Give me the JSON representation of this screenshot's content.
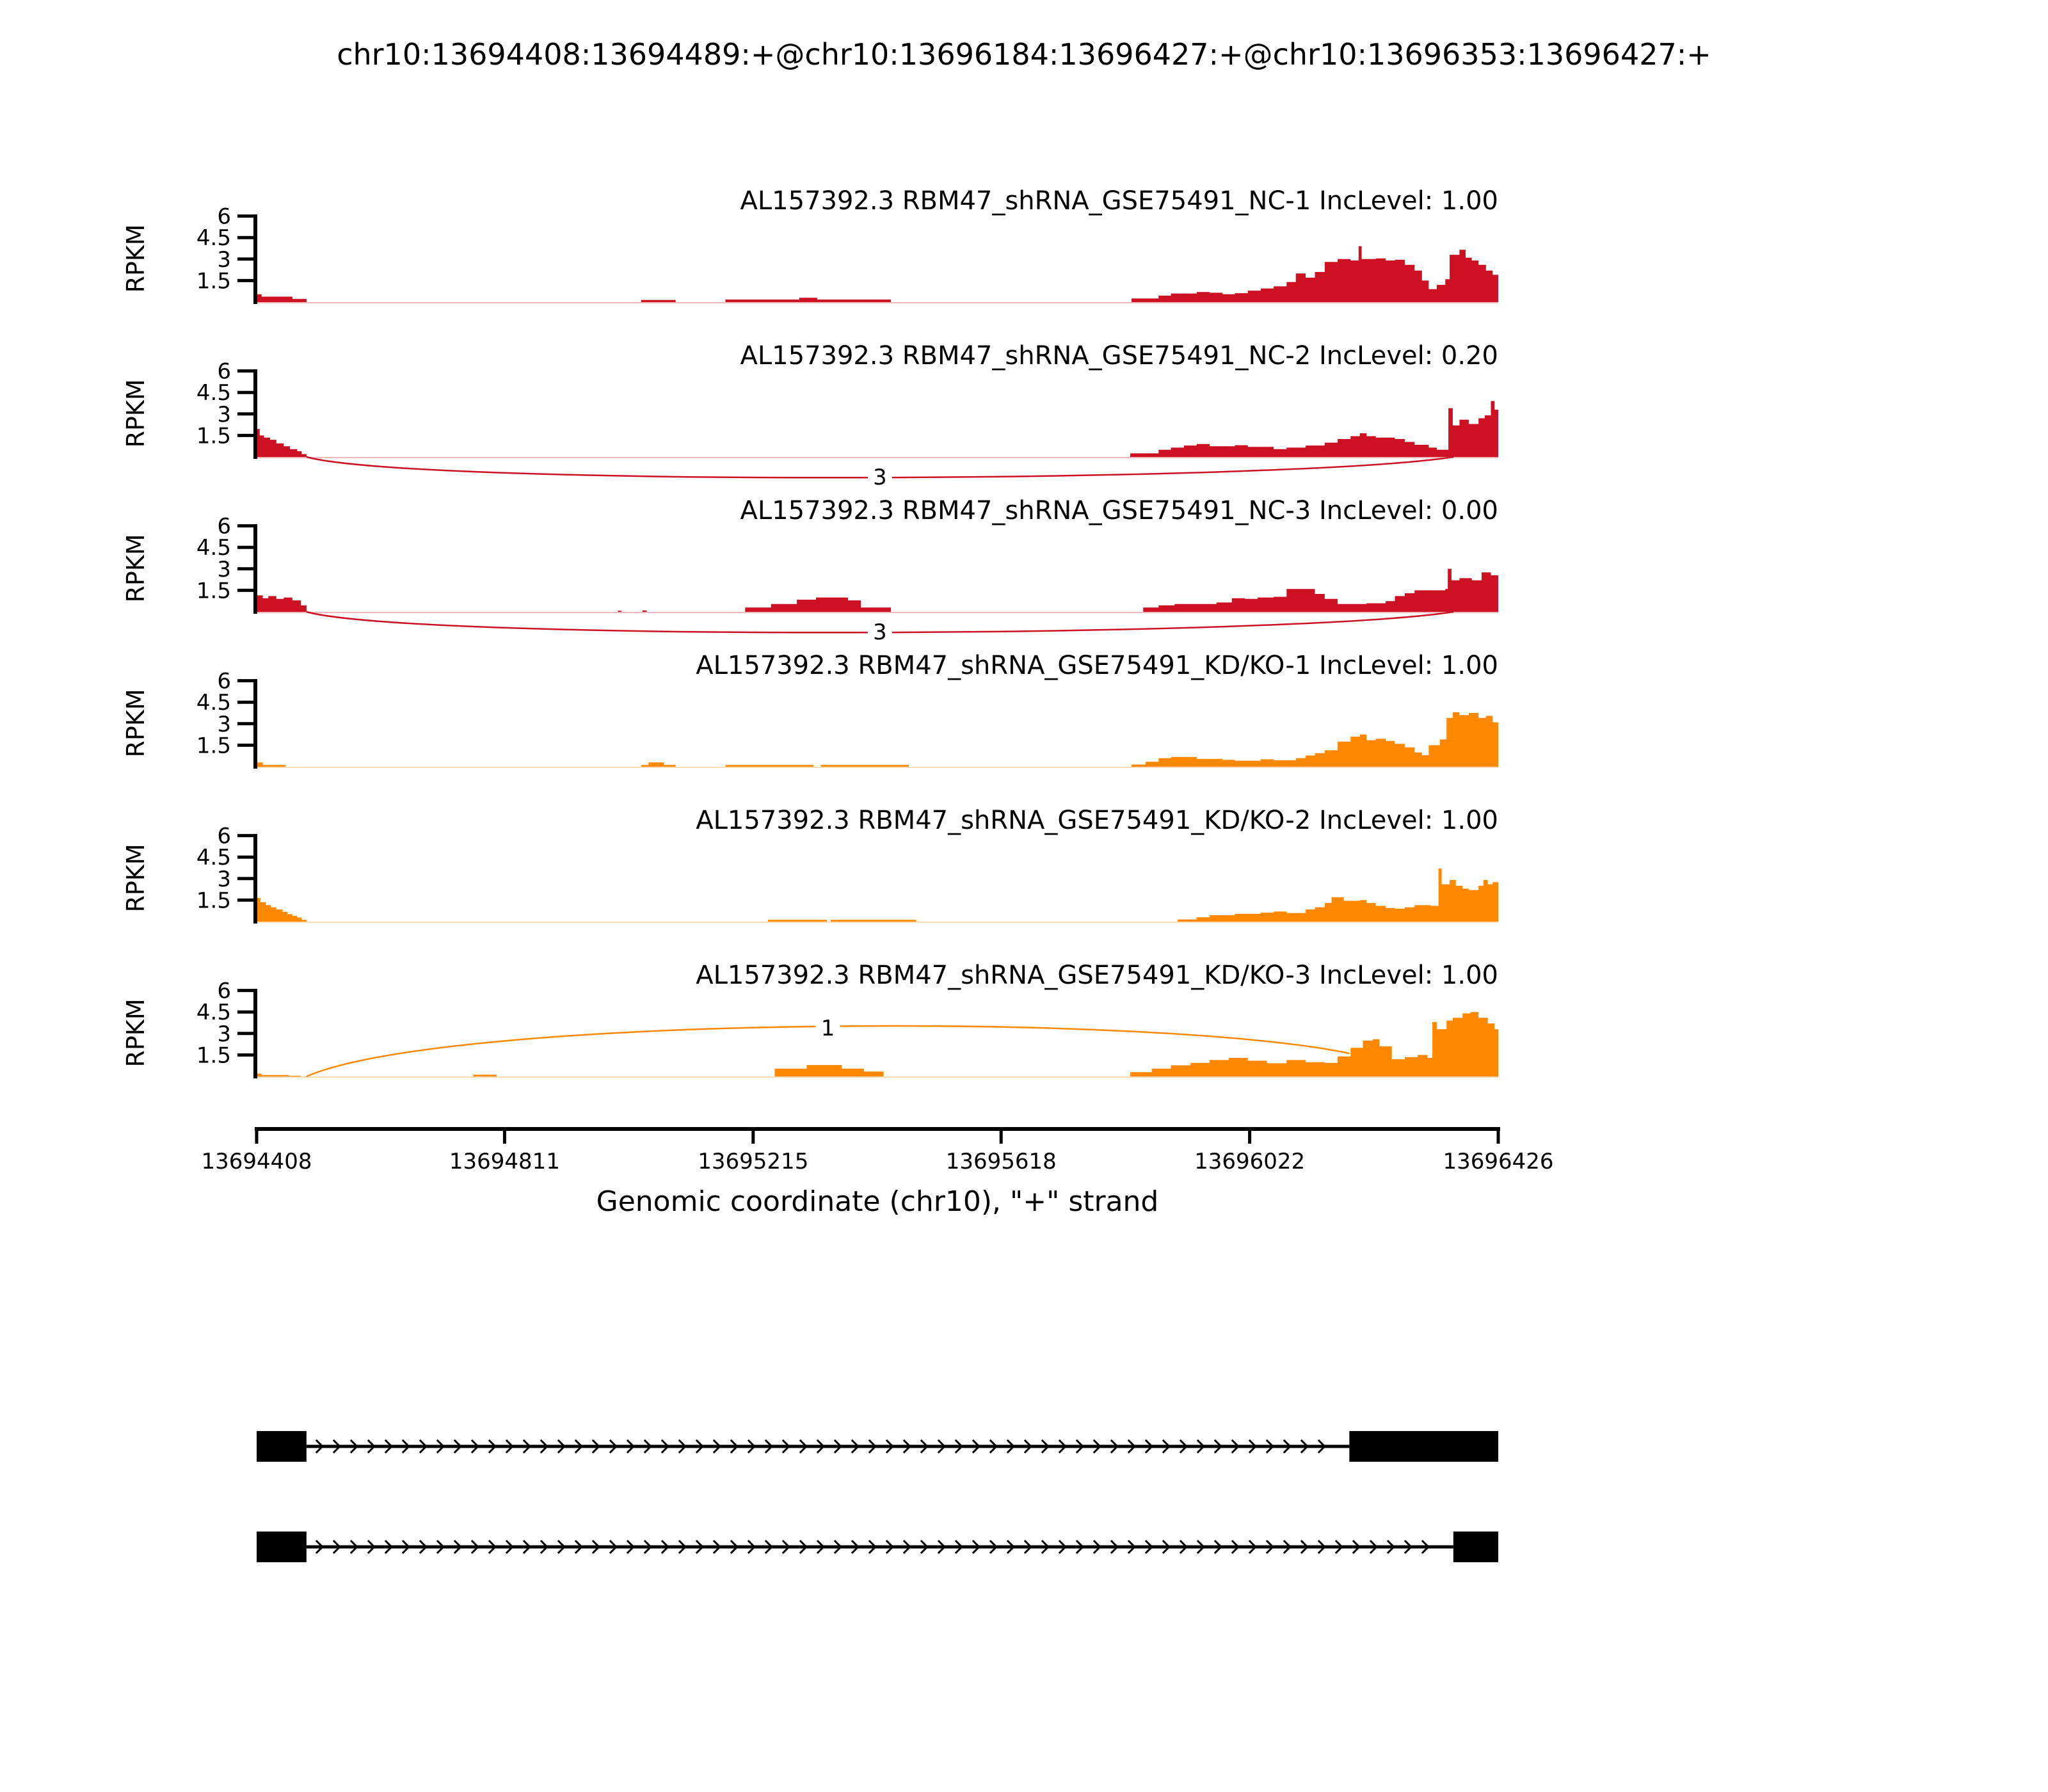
{
  "title": "chr10:13694408:13694489:+@chr10:13696184:13696427:+@chr10:13696353:13696427:+",
  "chart_data": {
    "type": "area",
    "subtype": "sashimi-coverage-plot",
    "title": "chr10:13694408:13694489:+@chr10:13696184:13696427:+@chr10:13696353:13696427:+",
    "x_axis": {
      "label": "Genomic coordinate (chr10), \"+\" strand",
      "range": [
        13694408,
        13696426
      ],
      "ticks": [
        13694408,
        13694811,
        13695215,
        13695618,
        13696022,
        13696426
      ]
    },
    "y_axis": {
      "label": "RPKM",
      "range": [
        0,
        6
      ],
      "ticks": [
        1.5,
        3,
        4.5,
        6
      ]
    },
    "group_colors": {
      "NC": "#CC1122",
      "KD/KO": "#FF8800"
    },
    "tracks": [
      {
        "label": "AL157392.3 RBM47_shRNA_GSE75491_NC-1 IncLevel: 1.00",
        "sample": "AL157392.3 RBM47_shRNA_GSE75491_NC-1",
        "group": "NC",
        "inc_level": "1.00",
        "color": "#CC1122",
        "junctions": [],
        "profile": [
          [
            13694408,
            0.55
          ],
          [
            13694416,
            0.38
          ],
          [
            13694466,
            0.22
          ],
          [
            13694489,
            0
          ],
          [
            13695033,
            0.15
          ],
          [
            13695089,
            0
          ],
          [
            13695170,
            0.18
          ],
          [
            13695290,
            0.3
          ],
          [
            13695319,
            0.18
          ],
          [
            13695439,
            0
          ],
          [
            13695830,
            0.25
          ],
          [
            13695874,
            0.45
          ],
          [
            13695894,
            0.6
          ],
          [
            13695936,
            0.7
          ],
          [
            13695957,
            0.65
          ],
          [
            13695978,
            0.55
          ],
          [
            13695998,
            0.62
          ],
          [
            13696019,
            0.8
          ],
          [
            13696040,
            0.95
          ],
          [
            13696061,
            1.1
          ],
          [
            13696082,
            1.4
          ],
          [
            13696097,
            2.0
          ],
          [
            13696113,
            1.7
          ],
          [
            13696128,
            2.1
          ],
          [
            13696144,
            2.8
          ],
          [
            13696165,
            3.0
          ],
          [
            13696186,
            2.9
          ],
          [
            13696199,
            3.9
          ],
          [
            13696204,
            3.0
          ],
          [
            13696227,
            3.05
          ],
          [
            13696243,
            2.9
          ],
          [
            13696258,
            2.95
          ],
          [
            13696274,
            2.6
          ],
          [
            13696290,
            2.2
          ],
          [
            13696302,
            1.5
          ],
          [
            13696313,
            0.9
          ],
          [
            13696326,
            1.2
          ],
          [
            13696340,
            1.6
          ],
          [
            13696347,
            3.3
          ],
          [
            13696363,
            3.65
          ],
          [
            13696373,
            3.1
          ],
          [
            13696383,
            2.9
          ],
          [
            13696394,
            2.6
          ],
          [
            13696406,
            2.2
          ],
          [
            13696417,
            1.9
          ],
          [
            13696426,
            0
          ]
        ]
      },
      {
        "label": "AL157392.3 RBM47_shRNA_GSE75491_NC-2 IncLevel: 0.20",
        "sample": "AL157392.3 RBM47_shRNA_GSE75491_NC-2",
        "group": "NC",
        "inc_level": "0.20",
        "color": "#CC1122",
        "junctions": [
          {
            "from": 13694489,
            "to": 13696353,
            "reads": 3,
            "curve": "down"
          }
        ],
        "profile": [
          [
            13694408,
            1.95
          ],
          [
            13694413,
            1.5
          ],
          [
            13694420,
            1.35
          ],
          [
            13694430,
            1.2
          ],
          [
            13694440,
            0.95
          ],
          [
            13694452,
            0.75
          ],
          [
            13694462,
            0.55
          ],
          [
            13694474,
            0.4
          ],
          [
            13694481,
            0.2
          ],
          [
            13694489,
            0
          ],
          [
            13695828,
            0.25
          ],
          [
            13695874,
            0.5
          ],
          [
            13695894,
            0.65
          ],
          [
            13695915,
            0.8
          ],
          [
            13695936,
            0.9
          ],
          [
            13695957,
            0.75
          ],
          [
            13695998,
            0.82
          ],
          [
            13696019,
            0.7
          ],
          [
            13696061,
            0.55
          ],
          [
            13696082,
            0.65
          ],
          [
            13696113,
            0.8
          ],
          [
            13696144,
            1.0
          ],
          [
            13696165,
            1.25
          ],
          [
            13696186,
            1.45
          ],
          [
            13696201,
            1.65
          ],
          [
            13696212,
            1.45
          ],
          [
            13696227,
            1.35
          ],
          [
            13696258,
            1.25
          ],
          [
            13696274,
            1.05
          ],
          [
            13696290,
            0.85
          ],
          [
            13696313,
            0.65
          ],
          [
            13696326,
            0.5
          ],
          [
            13696345,
            3.4
          ],
          [
            13696352,
            2.2
          ],
          [
            13696363,
            2.6
          ],
          [
            13696378,
            2.3
          ],
          [
            13696394,
            2.7
          ],
          [
            13696404,
            2.9
          ],
          [
            13696414,
            3.9
          ],
          [
            13696420,
            3.3
          ],
          [
            13696426,
            0
          ]
        ]
      },
      {
        "label": "AL157392.3 RBM47_shRNA_GSE75491_NC-3 IncLevel: 0.00",
        "sample": "AL157392.3 RBM47_shRNA_GSE75491_NC-3",
        "group": "NC",
        "inc_level": "0.00",
        "color": "#CC1122",
        "junctions": [
          {
            "from": 13694489,
            "to": 13696353,
            "reads": 3,
            "curve": "down"
          }
        ],
        "profile": [
          [
            13694408,
            1.15
          ],
          [
            13694418,
            0.95
          ],
          [
            13694427,
            1.1
          ],
          [
            13694440,
            0.9
          ],
          [
            13694452,
            1.0
          ],
          [
            13694466,
            0.8
          ],
          [
            13694480,
            0.45
          ],
          [
            13694489,
            0
          ],
          [
            13694995,
            0.08
          ],
          [
            13695001,
            0
          ],
          [
            13695035,
            0.1
          ],
          [
            13695042,
            0
          ],
          [
            13695202,
            0.3
          ],
          [
            13695244,
            0.55
          ],
          [
            13695286,
            0.85
          ],
          [
            13695317,
            1.0
          ],
          [
            13695369,
            0.8
          ],
          [
            13695390,
            0.3
          ],
          [
            13695439,
            0
          ],
          [
            13695849,
            0.3
          ],
          [
            13695874,
            0.45
          ],
          [
            13695900,
            0.55
          ],
          [
            13695968,
            0.65
          ],
          [
            13695993,
            0.95
          ],
          [
            13696014,
            0.9
          ],
          [
            13696035,
            1.0
          ],
          [
            13696061,
            1.05
          ],
          [
            13696082,
            1.6
          ],
          [
            13696128,
            1.25
          ],
          [
            13696144,
            0.9
          ],
          [
            13696165,
            0.55
          ],
          [
            13696212,
            0.6
          ],
          [
            13696243,
            0.75
          ],
          [
            13696258,
            1.1
          ],
          [
            13696274,
            1.3
          ],
          [
            13696290,
            1.5
          ],
          [
            13696340,
            1.6
          ],
          [
            13696344,
            3.0
          ],
          [
            13696350,
            2.2
          ],
          [
            13696363,
            2.35
          ],
          [
            13696383,
            2.2
          ],
          [
            13696399,
            2.75
          ],
          [
            13696414,
            2.55
          ],
          [
            13696426,
            0
          ]
        ]
      },
      {
        "label": "AL157392.3 RBM47_shRNA_GSE75491_KD/KO-1 IncLevel: 1.00",
        "sample": "AL157392.3 RBM47_shRNA_GSE75491_KD/KO-1",
        "group": "KD/KO",
        "inc_level": "1.00",
        "color": "#FF8800",
        "junctions": [],
        "profile": [
          [
            13694408,
            0.3
          ],
          [
            13694418,
            0.12
          ],
          [
            13694455,
            0
          ],
          [
            13695033,
            0.12
          ],
          [
            13695045,
            0.3
          ],
          [
            13695070,
            0.12
          ],
          [
            13695089,
            0
          ],
          [
            13695170,
            0.12
          ],
          [
            13695313,
            0
          ],
          [
            13695325,
            0.12
          ],
          [
            13695468,
            0
          ],
          [
            13695830,
            0.15
          ],
          [
            13695853,
            0.35
          ],
          [
            13695874,
            0.6
          ],
          [
            13695894,
            0.68
          ],
          [
            13695936,
            0.55
          ],
          [
            13695978,
            0.48
          ],
          [
            13695998,
            0.42
          ],
          [
            13696040,
            0.52
          ],
          [
            13696061,
            0.45
          ],
          [
            13696097,
            0.6
          ],
          [
            13696113,
            0.78
          ],
          [
            13696128,
            0.95
          ],
          [
            13696144,
            1.15
          ],
          [
            13696165,
            1.75
          ],
          [
            13696186,
            2.1
          ],
          [
            13696201,
            2.25
          ],
          [
            13696212,
            1.85
          ],
          [
            13696227,
            1.95
          ],
          [
            13696243,
            1.8
          ],
          [
            13696258,
            1.6
          ],
          [
            13696274,
            1.35
          ],
          [
            13696290,
            1.0
          ],
          [
            13696302,
            0.8
          ],
          [
            13696313,
            1.5
          ],
          [
            13696331,
            1.9
          ],
          [
            13696342,
            3.4
          ],
          [
            13696352,
            3.8
          ],
          [
            13696363,
            3.6
          ],
          [
            13696378,
            3.75
          ],
          [
            13696394,
            3.4
          ],
          [
            13696406,
            3.55
          ],
          [
            13696417,
            3.1
          ],
          [
            13696426,
            0
          ]
        ]
      },
      {
        "label": "AL157392.3 RBM47_shRNA_GSE75491_KD/KO-2 IncLevel: 1.00",
        "sample": "AL157392.3 RBM47_shRNA_GSE75491_KD/KO-2",
        "group": "KD/KO",
        "inc_level": "1.00",
        "color": "#FF8800",
        "junctions": [],
        "profile": [
          [
            13694408,
            1.65
          ],
          [
            13694414,
            1.35
          ],
          [
            13694423,
            1.15
          ],
          [
            13694431,
            1.0
          ],
          [
            13694440,
            0.85
          ],
          [
            13694450,
            0.68
          ],
          [
            13694458,
            0.52
          ],
          [
            13694466,
            0.4
          ],
          [
            13694474,
            0.28
          ],
          [
            13694481,
            0.12
          ],
          [
            13694489,
            0
          ],
          [
            13695239,
            0.12
          ],
          [
            13695335,
            0
          ],
          [
            13695341,
            0.12
          ],
          [
            13695480,
            0
          ],
          [
            13695905,
            0.15
          ],
          [
            13695936,
            0.3
          ],
          [
            13695957,
            0.45
          ],
          [
            13695998,
            0.55
          ],
          [
            13696040,
            0.62
          ],
          [
            13696061,
            0.7
          ],
          [
            13696082,
            0.6
          ],
          [
            13696113,
            0.85
          ],
          [
            13696128,
            1.0
          ],
          [
            13696144,
            1.3
          ],
          [
            13696155,
            1.7
          ],
          [
            13696175,
            1.45
          ],
          [
            13696201,
            1.5
          ],
          [
            13696212,
            1.3
          ],
          [
            13696227,
            1.1
          ],
          [
            13696243,
            0.95
          ],
          [
            13696258,
            0.9
          ],
          [
            13696274,
            1.0
          ],
          [
            13696290,
            1.15
          ],
          [
            13696316,
            1.1
          ],
          [
            13696329,
            3.7
          ],
          [
            13696334,
            2.6
          ],
          [
            13696347,
            2.9
          ],
          [
            13696357,
            2.5
          ],
          [
            13696368,
            2.3
          ],
          [
            13696378,
            2.2
          ],
          [
            13696394,
            2.5
          ],
          [
            13696402,
            2.9
          ],
          [
            13696409,
            2.6
          ],
          [
            13696417,
            2.75
          ],
          [
            13696426,
            0
          ]
        ]
      },
      {
        "label": "AL157392.3 RBM47_shRNA_GSE75491_KD/KO-3 IncLevel: 1.00",
        "sample": "AL157392.3 RBM47_shRNA_GSE75491_KD/KO-3",
        "group": "KD/KO",
        "inc_level": "1.00",
        "color": "#FF8800",
        "junctions": [
          {
            "from": 13694489,
            "to": 13696184,
            "reads": 1,
            "curve": "up"
          }
        ],
        "profile": [
          [
            13694408,
            0.2
          ],
          [
            13694416,
            0.1
          ],
          [
            13694460,
            0.05
          ],
          [
            13694480,
            0
          ],
          [
            13694760,
            0.12
          ],
          [
            13694798,
            0
          ],
          [
            13695250,
            0.55
          ],
          [
            13695302,
            0.8
          ],
          [
            13695359,
            0.55
          ],
          [
            13695395,
            0.35
          ],
          [
            13695427,
            0
          ],
          [
            13695828,
            0.3
          ],
          [
            13695863,
            0.55
          ],
          [
            13695894,
            0.78
          ],
          [
            13695926,
            0.95
          ],
          [
            13695957,
            1.15
          ],
          [
            13695988,
            1.3
          ],
          [
            13696019,
            1.1
          ],
          [
            13696050,
            0.92
          ],
          [
            13696082,
            1.15
          ],
          [
            13696113,
            1.0
          ],
          [
            13696144,
            0.95
          ],
          [
            13696165,
            1.4
          ],
          [
            13696186,
            2.0
          ],
          [
            13696206,
            2.5
          ],
          [
            13696222,
            2.6
          ],
          [
            13696233,
            2.1
          ],
          [
            13696253,
            1.2
          ],
          [
            13696274,
            1.35
          ],
          [
            13696295,
            1.5
          ],
          [
            13696311,
            1.3
          ],
          [
            13696319,
            3.8
          ],
          [
            13696326,
            3.3
          ],
          [
            13696342,
            3.9
          ],
          [
            13696352,
            4.1
          ],
          [
            13696368,
            4.4
          ],
          [
            13696381,
            4.5
          ],
          [
            13696394,
            4.1
          ],
          [
            13696409,
            3.7
          ],
          [
            13696420,
            3.3
          ],
          [
            13696426,
            0
          ]
        ]
      }
    ],
    "transcripts": [
      {
        "strand": "+",
        "exons": [
          [
            13694408,
            13694489
          ],
          [
            13696184,
            13696426
          ]
        ]
      },
      {
        "strand": "+",
        "exons": [
          [
            13694408,
            13694489
          ],
          [
            13696353,
            13696426
          ]
        ]
      }
    ]
  }
}
